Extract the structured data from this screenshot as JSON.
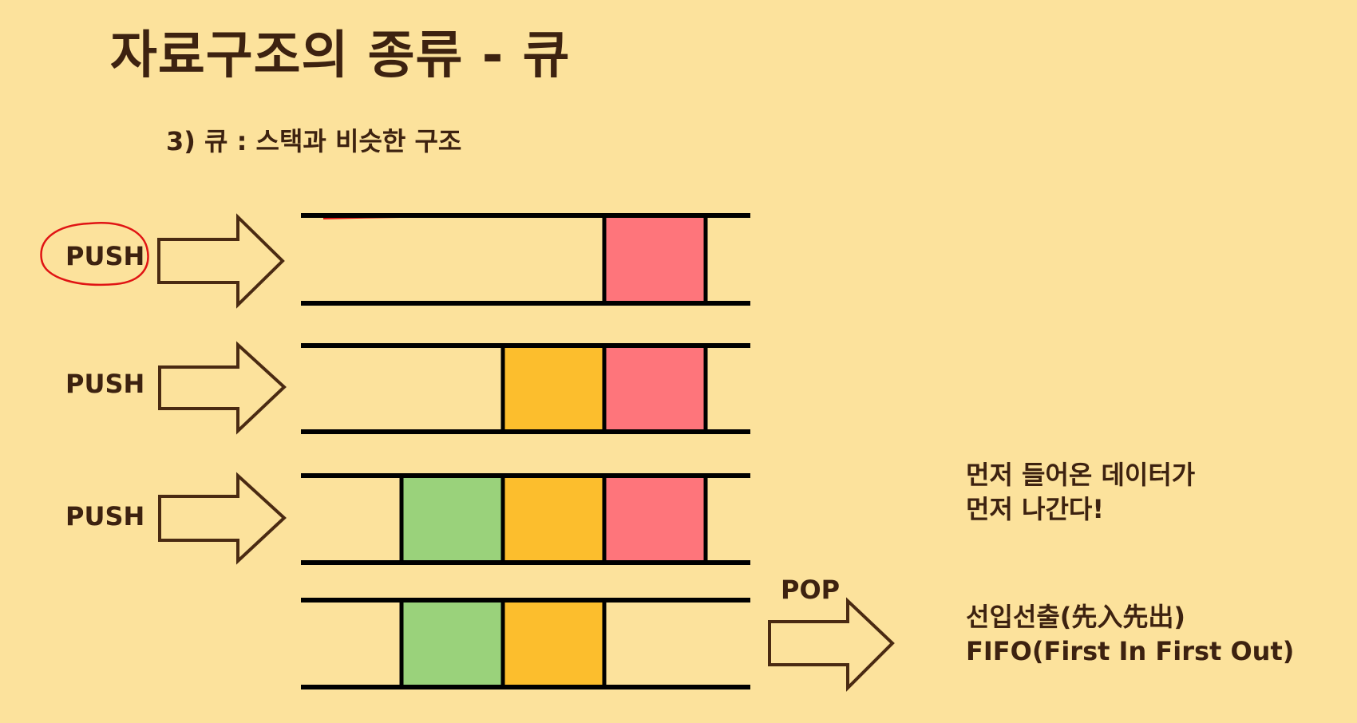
{
  "title": "자료구조의 종류 - 큐",
  "subtitle": "3) 큐 : 스택과 비슷한 구조",
  "operations": {
    "push": "PUSH",
    "pop": "POP"
  },
  "notes": {
    "line1": "먼저 들어온 데이터가",
    "line2": "먼저 나간다!",
    "line3": "선입선출(先入先出)",
    "line4": "FIFO(First In First Out)"
  },
  "colors": {
    "background": "#fce29c",
    "red_block": "#fe757b",
    "orange_block": "#fcbe2d",
    "green_block": "#9ad27b",
    "outline": "#000000",
    "arrow_fill": "#fce29c",
    "arrow_stroke": "#4a2a12",
    "highlight_circle": "#e01414"
  },
  "queue_states": [
    {
      "step": "PUSH",
      "blocks": [
        "empty",
        "empty",
        "empty",
        "red"
      ]
    },
    {
      "step": "PUSH",
      "blocks": [
        "empty",
        "empty",
        "orange",
        "red"
      ]
    },
    {
      "step": "PUSH",
      "blocks": [
        "empty",
        "green",
        "orange",
        "red"
      ]
    },
    {
      "step": "POP",
      "blocks": [
        "empty",
        "green",
        "orange",
        "empty"
      ]
    }
  ]
}
